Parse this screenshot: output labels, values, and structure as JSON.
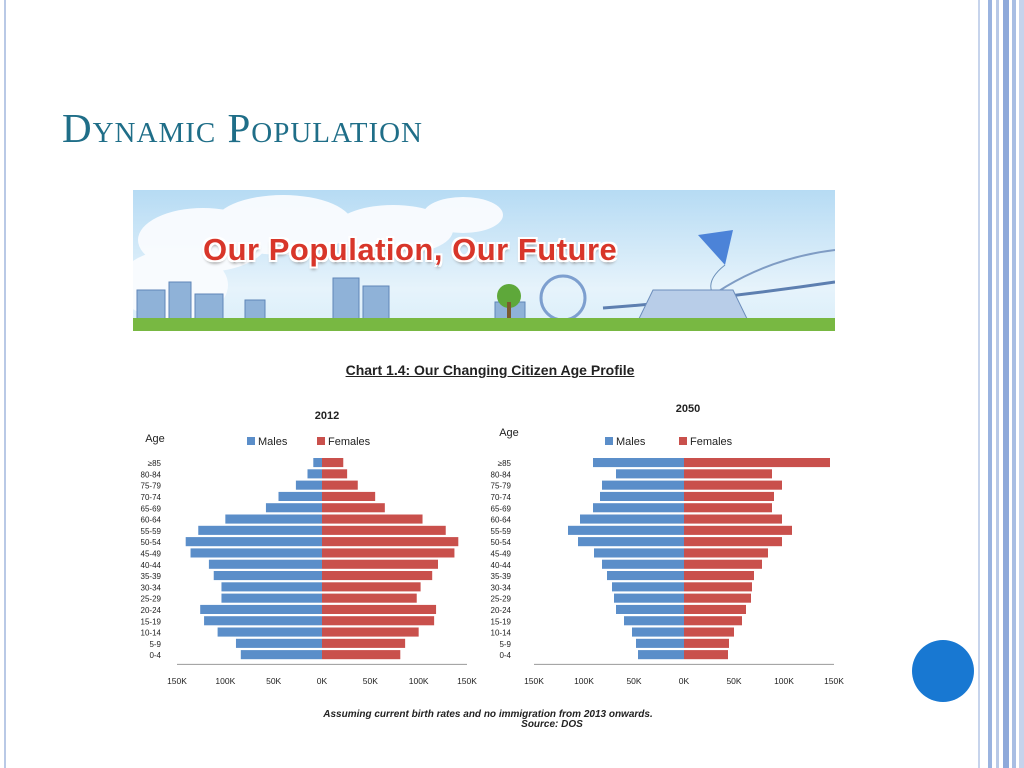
{
  "slide": {
    "title": "Dynamic Population",
    "banner_text": "Our Population, Our Future",
    "chart_title": "Chart 1.4: Our Changing Citizen Age Profile",
    "note": "Assuming current birth rates and no immigration from 2013 onwards.",
    "source": "Source: DOS",
    "accent_color": "#1f6e88",
    "dot_color": "#1878d2"
  },
  "chart_data": [
    {
      "type": "bar",
      "orientation": "horizontal",
      "title": "2012",
      "ylabel": "Age",
      "categories": [
        "≥85",
        "80-84",
        "75-79",
        "70-74",
        "65-69",
        "60-64",
        "55-59",
        "50-54",
        "45-49",
        "40-44",
        "35-39",
        "30-34",
        "25-29",
        "20-24",
        "15-19",
        "10-14",
        "5-9",
        "0-4"
      ],
      "series": [
        {
          "name": "Males",
          "color": "#5b8ec9",
          "values": [
            9000,
            15000,
            27000,
            45000,
            58000,
            100000,
            128000,
            141000,
            136000,
            117000,
            112000,
            104000,
            104000,
            126000,
            122000,
            108000,
            89000,
            84000
          ]
        },
        {
          "name": "Females",
          "color": "#c9504c",
          "values": [
            22000,
            26000,
            37000,
            55000,
            65000,
            104000,
            128000,
            141000,
            137000,
            120000,
            114000,
            102000,
            98000,
            118000,
            116000,
            100000,
            86000,
            81000
          ]
        }
      ],
      "xlim": [
        -150000,
        150000
      ],
      "xticks": [
        "150K",
        "100K",
        "50K",
        "0K",
        "50K",
        "100K",
        "150K"
      ],
      "legend": "top"
    },
    {
      "type": "bar",
      "orientation": "horizontal",
      "title": "2050",
      "ylabel": "Age",
      "categories": [
        "≥85",
        "80-84",
        "75-79",
        "70-74",
        "65-69",
        "60-64",
        "55-59",
        "50-54",
        "45-49",
        "40-44",
        "35-39",
        "30-34",
        "25-29",
        "20-24",
        "15-19",
        "10-14",
        "5-9",
        "0-4"
      ],
      "series": [
        {
          "name": "Males",
          "color": "#5b8ec9",
          "values": [
            91000,
            68000,
            82000,
            84000,
            91000,
            104000,
            116000,
            106000,
            90000,
            82000,
            77000,
            72000,
            70000,
            68000,
            60000,
            52000,
            48000,
            46000
          ]
        },
        {
          "name": "Females",
          "color": "#c9504c",
          "values": [
            146000,
            88000,
            98000,
            90000,
            88000,
            98000,
            108000,
            98000,
            84000,
            78000,
            70000,
            68000,
            67000,
            62000,
            58000,
            50000,
            45000,
            44000
          ]
        }
      ],
      "xlim": [
        -150000,
        150000
      ],
      "xticks": [
        "150K",
        "100K",
        "50K",
        "0K",
        "50K",
        "100K",
        "150K"
      ],
      "legend": "top"
    }
  ]
}
